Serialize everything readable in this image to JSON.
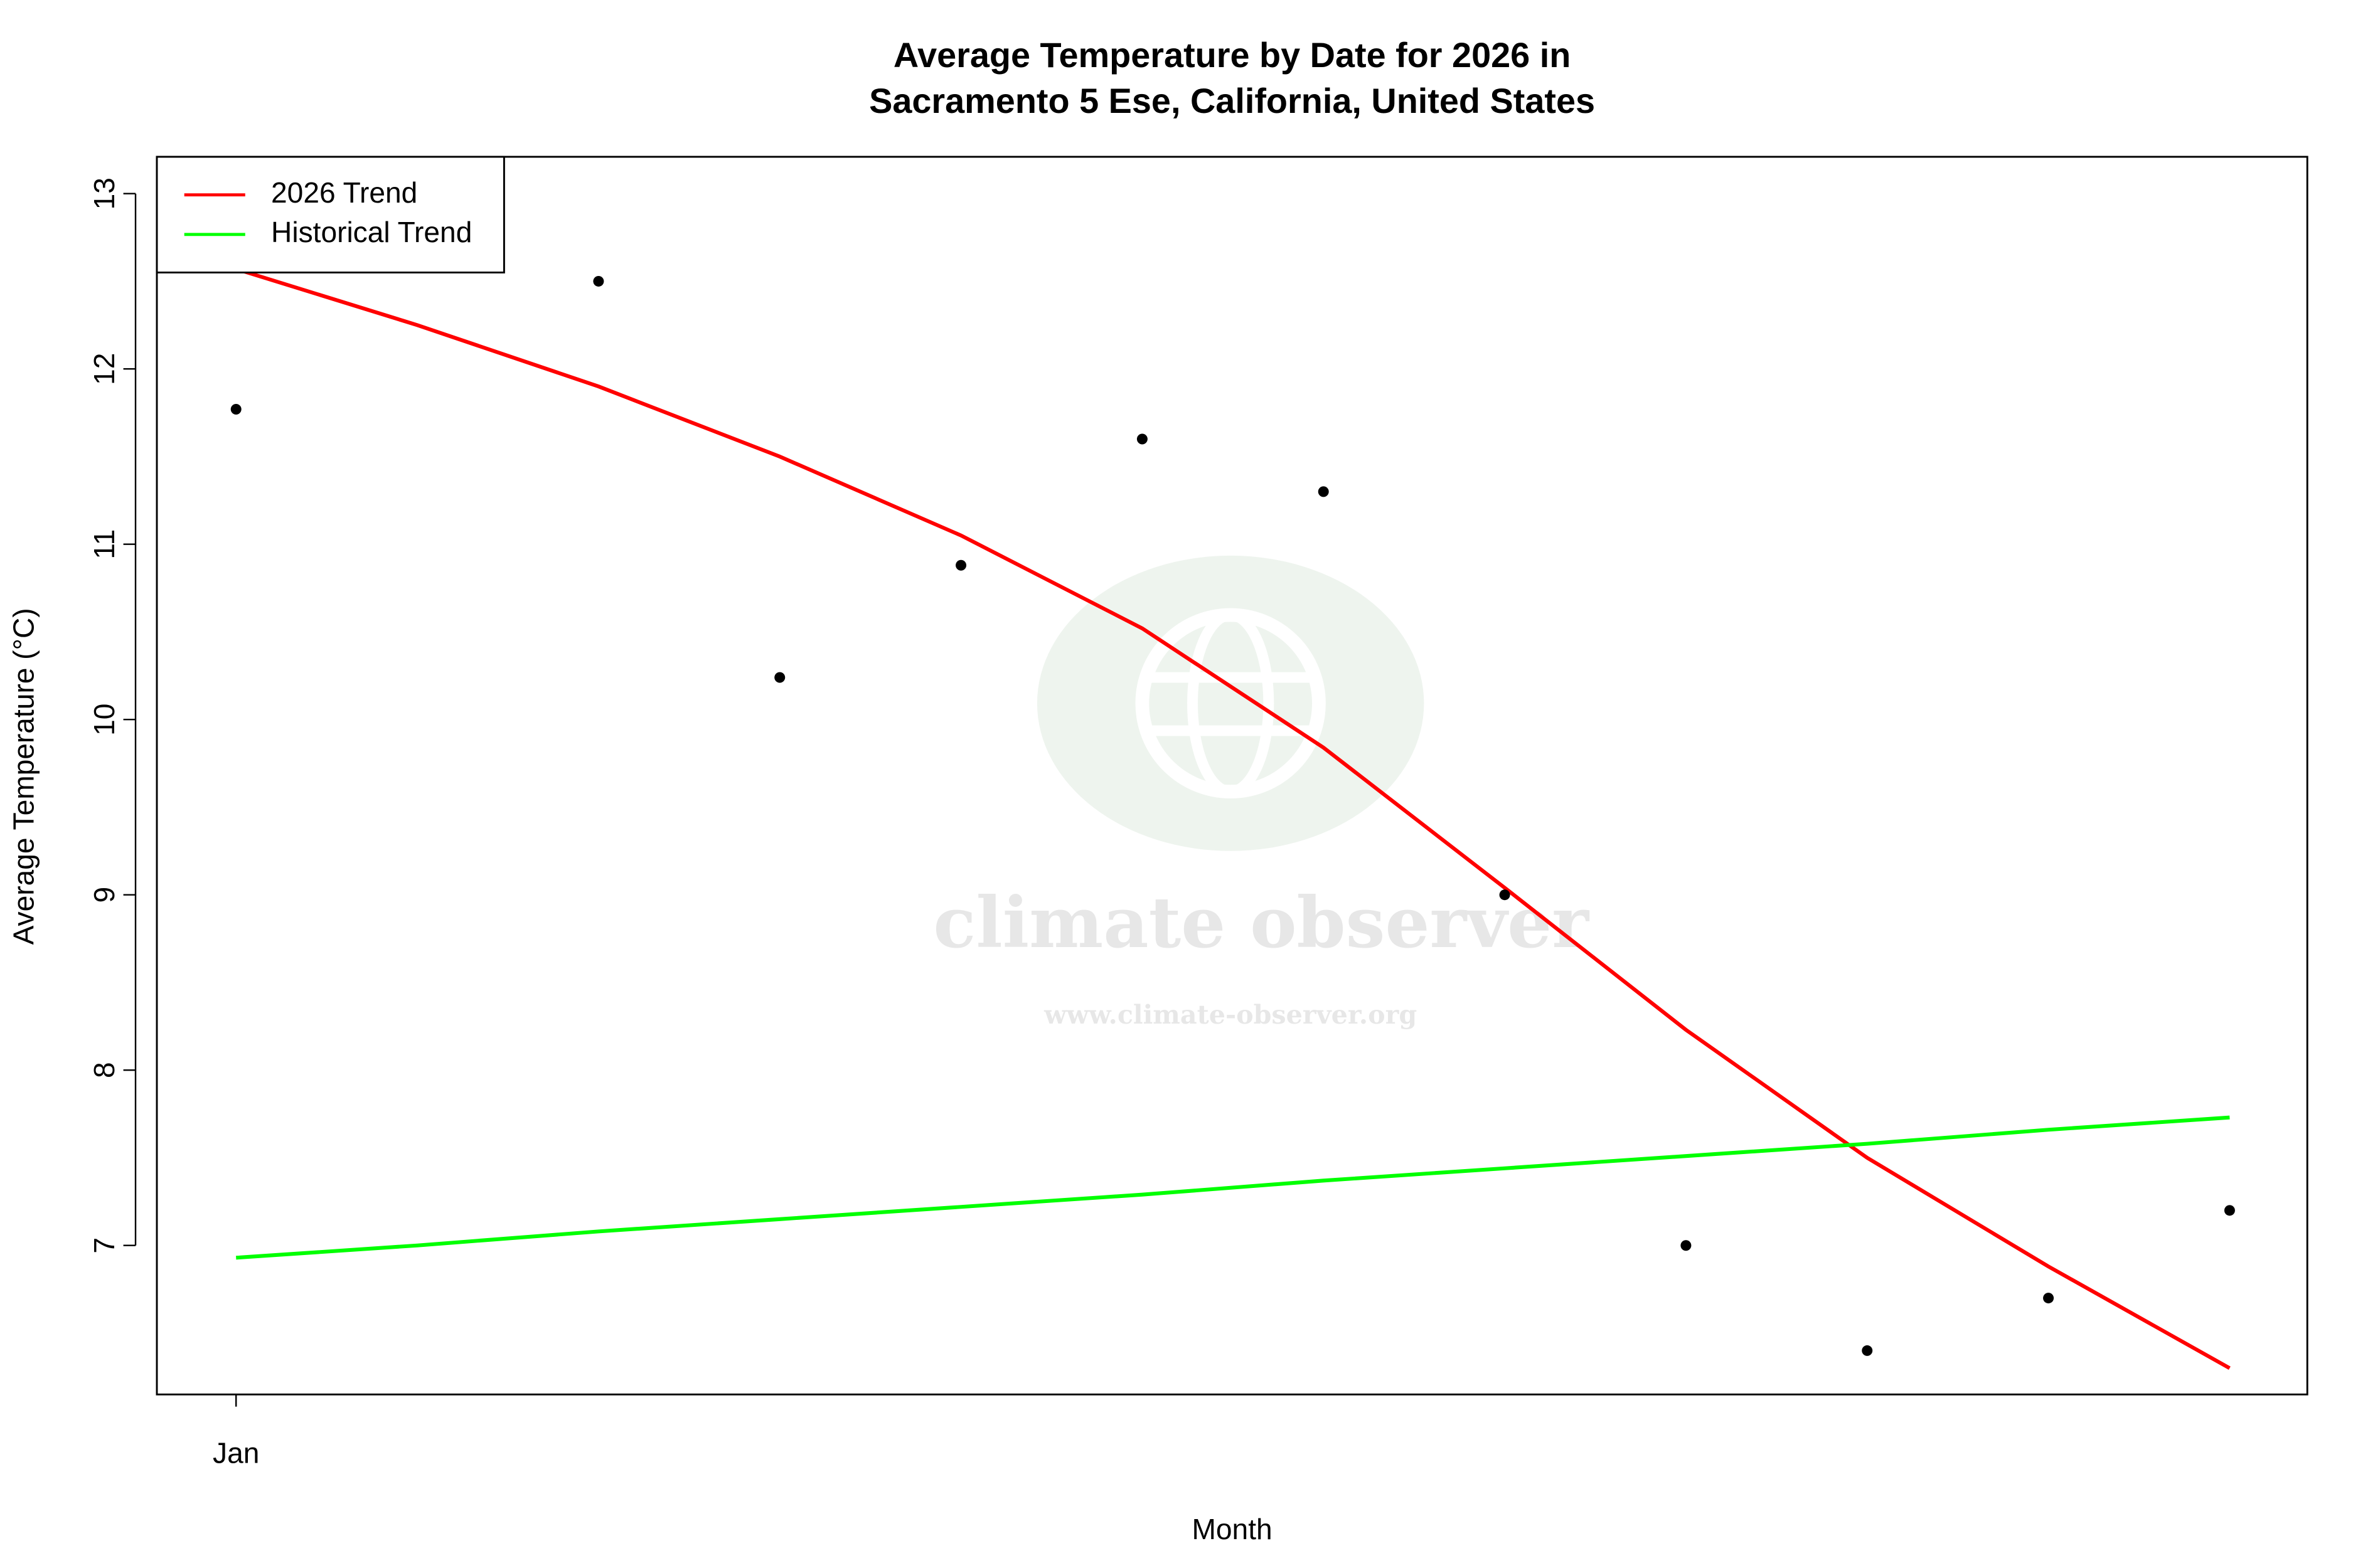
{
  "chart_data": {
    "type": "line",
    "title": "Average Temperature by Date for 2026 in",
    "subtitle": "Sacramento 5 Ese, California, United States",
    "x_label": "Month",
    "y_label": "Average Temperature (°C)",
    "watermark": "climate observer",
    "watermark_url": "www.climate-observer.org",
    "categories": [
      "Jan",
      null,
      null,
      null,
      null,
      null,
      null,
      null,
      null,
      null,
      null,
      null
    ],
    "points": {
      "color": "#000000",
      "values": [
        11.77,
        null,
        12.5,
        10.24,
        10.88,
        11.6,
        11.3,
        9.0,
        7.0,
        6.4,
        6.7,
        7.2
      ]
    },
    "series": [
      {
        "name": "2026 Trend",
        "color": "#ff0000",
        "values": [
          12.57,
          12.25,
          11.9,
          11.5,
          11.05,
          10.52,
          9.84,
          9.04,
          8.23,
          7.5,
          6.88,
          6.3
        ]
      },
      {
        "name": "Historical Trend",
        "color": "#00ff00",
        "values": [
          6.93,
          7.0,
          7.08,
          7.15,
          7.22,
          7.29,
          7.37,
          7.44,
          7.51,
          7.58,
          7.66,
          7.73
        ]
      }
    ],
    "ylim": [
      6.15,
      13.21
    ],
    "yticks": [
      7,
      8,
      9,
      10,
      11,
      12,
      13
    ],
    "legend": "top-left",
    "grid": false
  }
}
